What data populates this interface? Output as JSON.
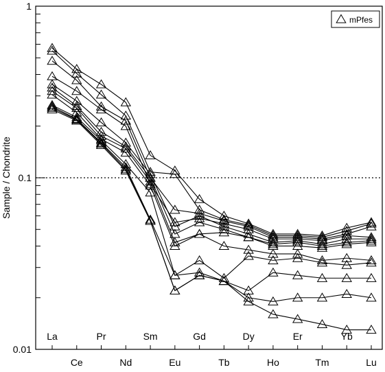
{
  "chart_data": {
    "type": "line",
    "ylabel": "Sample / Chondrite",
    "y_scale": "log",
    "ylim": [
      0.01,
      1
    ],
    "y_ticks": [
      {
        "value": 1,
        "label": "1"
      },
      {
        "value": 0.1,
        "label": "0.1"
      },
      {
        "value": 0.01,
        "label": "0.01"
      }
    ],
    "reference_line": 0.1,
    "categories": [
      "La",
      "Ce",
      "Pr",
      "Nd",
      "Sm",
      "Eu",
      "Gd",
      "Tb",
      "Dy",
      "Ho",
      "Er",
      "Tm",
      "Yb",
      "Lu"
    ],
    "legend": {
      "label": "mPfes",
      "marker": "triangle",
      "position": "top-right"
    },
    "series": [
      {
        "values": [
          0.57,
          0.43,
          0.35,
          0.275,
          0.135,
          0.11,
          0.075,
          0.06,
          0.054,
          0.047,
          0.047,
          0.046,
          0.051,
          0.055
        ]
      },
      {
        "values": [
          0.55,
          0.405,
          0.305,
          0.23,
          0.108,
          0.105,
          0.065,
          0.057,
          0.053,
          0.046,
          0.046,
          0.045,
          0.049,
          0.054
        ]
      },
      {
        "values": [
          0.48,
          0.37,
          0.26,
          0.215,
          0.1,
          0.065,
          0.062,
          0.056,
          0.052,
          0.045,
          0.045,
          0.044,
          0.047,
          0.052
        ]
      },
      {
        "values": [
          0.39,
          0.32,
          0.25,
          0.2,
          0.092,
          0.055,
          0.058,
          0.054,
          0.05,
          0.044,
          0.044,
          0.043,
          0.046,
          0.045
        ]
      },
      {
        "values": [
          0.35,
          0.28,
          0.21,
          0.16,
          0.105,
          0.052,
          0.06,
          0.052,
          0.047,
          0.042,
          0.043,
          0.041,
          0.044,
          0.044
        ]
      },
      {
        "values": [
          0.335,
          0.262,
          0.185,
          0.152,
          0.1,
          0.047,
          0.055,
          0.05,
          0.045,
          0.041,
          0.042,
          0.04,
          0.042,
          0.043
        ]
      },
      {
        "values": [
          0.32,
          0.255,
          0.175,
          0.148,
          0.095,
          0.042,
          0.047,
          0.048,
          0.045,
          0.04,
          0.04,
          0.039,
          0.041,
          0.042
        ]
      },
      {
        "values": [
          0.305,
          0.24,
          0.168,
          0.14,
          0.09,
          0.04,
          0.047,
          0.04,
          0.038,
          0.036,
          0.036,
          0.033,
          0.034,
          0.033
        ]
      },
      {
        "values": [
          0.265,
          0.225,
          0.165,
          0.12,
          0.082,
          0.027,
          0.033,
          0.026,
          0.035,
          0.033,
          0.034,
          0.032,
          0.031,
          0.032
        ]
      },
      {
        "values": [
          0.26,
          0.22,
          0.16,
          0.115,
          0.057,
          0.027,
          0.028,
          0.025,
          0.022,
          0.028,
          0.027,
          0.026,
          0.026,
          0.026
        ]
      },
      {
        "values": [
          0.255,
          0.218,
          0.158,
          0.112,
          0.056,
          0.022,
          0.027,
          0.025,
          0.02,
          0.019,
          0.02,
          0.02,
          0.021,
          0.02
        ]
      },
      {
        "values": [
          0.25,
          0.215,
          0.155,
          0.11,
          0.056,
          0.022,
          0.027,
          0.025,
          0.019,
          0.016,
          0.015,
          0.014,
          0.013,
          0.013
        ]
      }
    ]
  }
}
